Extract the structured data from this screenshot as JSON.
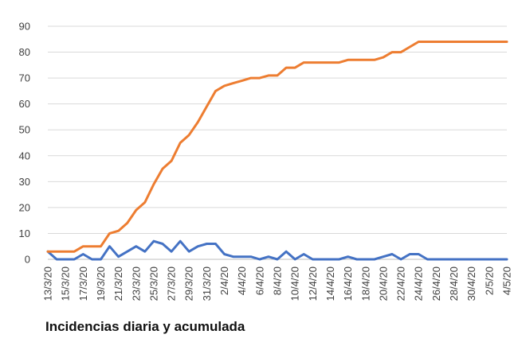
{
  "caption": "Incidencias diaria y acumulada",
  "chart_data": {
    "type": "line",
    "grid": true,
    "ylim": [
      0,
      90
    ],
    "yticks": [
      0,
      10,
      20,
      30,
      40,
      50,
      60,
      70,
      80,
      90
    ],
    "x": [
      "13/3/20",
      "14/3/20",
      "15/3/20",
      "16/3/20",
      "17/3/20",
      "18/3/20",
      "19/3/20",
      "20/3/20",
      "21/3/20",
      "22/3/20",
      "23/3/20",
      "24/3/20",
      "25/3/20",
      "26/3/20",
      "27/3/20",
      "28/3/20",
      "29/3/20",
      "30/3/20",
      "31/3/20",
      "1/4/20",
      "2/4/20",
      "3/4/20",
      "4/4/20",
      "5/4/20",
      "6/4/20",
      "7/4/20",
      "8/4/20",
      "9/4/20",
      "10/4/20",
      "11/4/20",
      "12/4/20",
      "13/4/20",
      "14/4/20",
      "15/4/20",
      "16/4/20",
      "17/4/20",
      "18/4/20",
      "19/4/20",
      "20/4/20",
      "21/4/20",
      "22/4/20",
      "23/4/20",
      "24/4/20",
      "25/4/20",
      "26/4/20",
      "27/4/20",
      "28/4/20",
      "29/4/20",
      "30/4/20",
      "1/5/20",
      "2/5/20",
      "3/5/20",
      "4/5/20"
    ],
    "x_tick_labels": [
      "13/3/20",
      "15/3/20",
      "17/3/20",
      "19/3/20",
      "21/3/20",
      "23/3/20",
      "25/3/20",
      "27/3/20",
      "29/3/20",
      "31/3/20",
      "2/4/20",
      "4/4/20",
      "6/4/20",
      "8/4/20",
      "10/4/20",
      "12/4/20",
      "14/4/20",
      "16/4/20",
      "18/4/20",
      "20/4/20",
      "22/4/20",
      "24/4/20",
      "26/4/20",
      "28/4/20",
      "30/4/20",
      "2/5/20",
      "4/5/20"
    ],
    "series": [
      {
        "color": "#4472c4",
        "values": [
          3,
          0,
          0,
          0,
          2,
          0,
          0,
          5,
          1,
          3,
          5,
          3,
          7,
          6,
          3,
          7,
          3,
          5,
          6,
          6,
          2,
          1,
          1,
          1,
          0,
          1,
          0,
          3,
          0,
          2,
          0,
          0,
          0,
          0,
          1,
          0,
          0,
          0,
          1,
          2,
          0,
          2,
          2,
          0,
          0,
          0,
          0,
          0,
          0,
          0,
          0,
          0,
          0
        ]
      },
      {
        "color": "#ed7d31",
        "values": [
          3,
          3,
          3,
          3,
          5,
          5,
          5,
          10,
          11,
          14,
          19,
          22,
          29,
          35,
          38,
          45,
          48,
          53,
          59,
          65,
          67,
          68,
          69,
          70,
          70,
          71,
          71,
          74,
          74,
          76,
          76,
          76,
          76,
          76,
          77,
          77,
          77,
          77,
          78,
          80,
          80,
          82,
          84,
          84,
          84,
          84,
          84,
          84,
          84,
          84,
          84,
          84,
          84
        ]
      }
    ]
  }
}
